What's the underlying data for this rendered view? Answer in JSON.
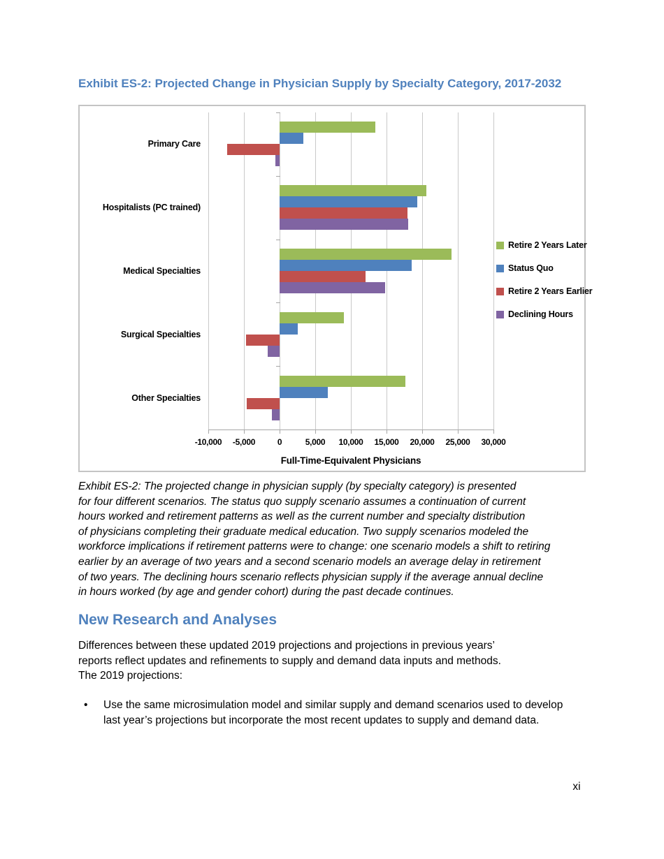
{
  "title": "Exhibit ES-2: Projected Change in Physician Supply by Specialty Category, 2017-2032",
  "chart_data": {
    "type": "bar",
    "orientation": "horizontal",
    "title": "",
    "xlabel": "Full-Time-Equivalent Physicians",
    "ylabel": "",
    "categories": [
      "Primary Care",
      "Hospitalists (PC trained)",
      "Medical Specialties",
      "Surgical Specialties",
      "Other Specialties"
    ],
    "series": [
      {
        "name": "Retire 2 Years Later",
        "color": "#9BBB59",
        "values": [
          13400,
          20600,
          24100,
          9000,
          17600
        ]
      },
      {
        "name": "Status Quo",
        "color": "#4F81BD",
        "values": [
          3300,
          19300,
          18500,
          2500,
          6800
        ]
      },
      {
        "name": "Retire 2 Years Earlier",
        "color": "#C0504D",
        "values": [
          -7400,
          17900,
          12100,
          -4700,
          -4600
        ]
      },
      {
        "name": "Declining Hours",
        "color": "#8064A2",
        "values": [
          -600,
          18000,
          14800,
          -1700,
          -1100
        ]
      }
    ],
    "xlim": [
      -10000,
      30000
    ],
    "xtick_values": [
      -10000,
      -5000,
      0,
      5000,
      10000,
      15000,
      20000,
      25000,
      30000
    ],
    "xtick_labels": [
      "-10,000",
      "-5,000",
      "0",
      "5,000",
      "10,000",
      "15,000",
      "20,000",
      "25,000",
      "30,000"
    ],
    "grid": true,
    "legend_position": "right"
  },
  "caption": "Exhibit ES-2: The projected change in physician supply (by specialty category) is presented\nfor four different scenarios. The status quo supply scenario assumes a continuation of current\nhours worked and retirement patterns as well as the current number and specialty distribution\nof physicians completing their graduate medical education. Two supply scenarios modeled the\nworkforce implications if retirement patterns were to change: one scenario models a shift to retiring\nearlier by an average of two years and a second scenario models an average delay in retirement\nof two years. The declining hours scenario reflects physician supply if the average annual decline\nin hours worked (by age and gender cohort) during the past decade continues.",
  "section": {
    "heading": "New Research and Analyses",
    "paragraph": "Differences between these updated 2019 projections and projections in previous years’\nreports reflect updates and refinements to supply and demand data inputs and methods.\nThe 2019 projections:",
    "bullet_marker": "•",
    "bullets": [
      "Use the same microsimulation model and similar supply and demand scenarios used to develop\nlast year’s projections but incorporate the most recent updates to supply and demand data."
    ]
  },
  "page": {
    "page_number": "xi"
  }
}
